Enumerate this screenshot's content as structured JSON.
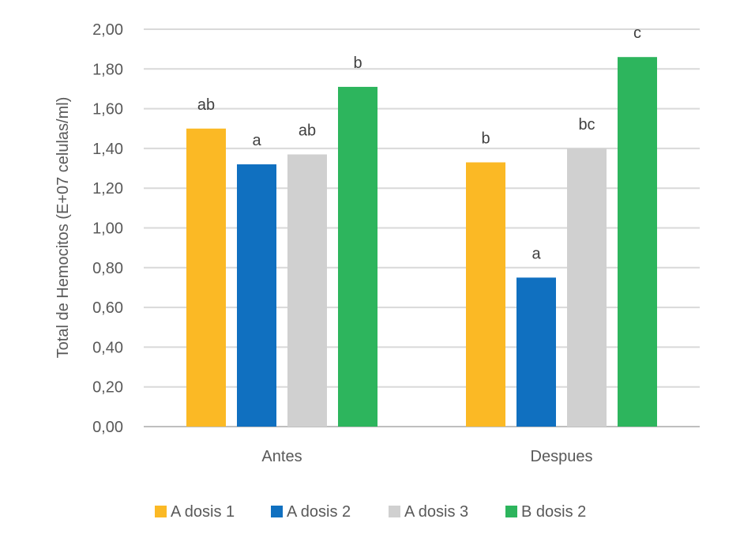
{
  "chart_data": {
    "type": "bar",
    "title": "",
    "xlabel": "",
    "ylabel": "Total de Hemocitos (E+07 celulas/ml)",
    "ylim": [
      0,
      2.0
    ],
    "yticks": [
      "0,00",
      "0,20",
      "0,40",
      "0,60",
      "0,80",
      "1,00",
      "1,20",
      "1,40",
      "1,60",
      "1,80",
      "2,00"
    ],
    "categories": [
      "Antes",
      "Despues"
    ],
    "grid": true,
    "legend_position": "bottom",
    "series": [
      {
        "name": "A dosis 1",
        "color": "#FBB925",
        "values": [
          1.5,
          1.33
        ],
        "labels": [
          "ab",
          "b"
        ]
      },
      {
        "name": "A dosis 2",
        "color": "#1070C0",
        "values": [
          1.32,
          0.75
        ],
        "labels": [
          "a",
          "a"
        ]
      },
      {
        "name": "A dosis 3",
        "color": "#D0D0D0",
        "values": [
          1.37,
          1.4
        ],
        "labels": [
          "ab",
          "bc"
        ]
      },
      {
        "name": "B dosis 2",
        "color": "#2DB55D",
        "values": [
          1.71,
          1.86
        ],
        "labels": [
          "b",
          "c"
        ]
      }
    ]
  }
}
